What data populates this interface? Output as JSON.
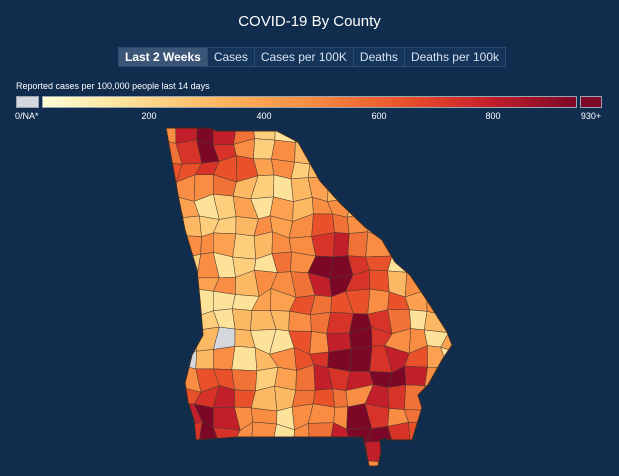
{
  "title": "COVID-19 By County",
  "tabs": [
    {
      "label": "Last 2 Weeks",
      "active": true
    },
    {
      "label": "Cases",
      "active": false
    },
    {
      "label": "Cases per 100K",
      "active": false
    },
    {
      "label": "Deaths",
      "active": false
    },
    {
      "label": "Deaths per 100k",
      "active": false
    }
  ],
  "legend": {
    "label": "Reported cases per 100,000 people last 14 days",
    "na_label": "0/NA*",
    "ticks": [
      "200",
      "400",
      "600",
      "800"
    ],
    "max_label": "930+",
    "colors": {
      "na": "#d4d7dc",
      "min": "#fffed6",
      "max": "#7d0727"
    }
  },
  "map": {
    "region": "Georgia",
    "palette": [
      "#fde39a",
      "#fdcf7c",
      "#fdb863",
      "#fba150",
      "#f98d44",
      "#f07237",
      "#e9512b",
      "#d83328",
      "#c21f2b",
      "#7d0727",
      "#d4d7dc"
    ]
  }
}
